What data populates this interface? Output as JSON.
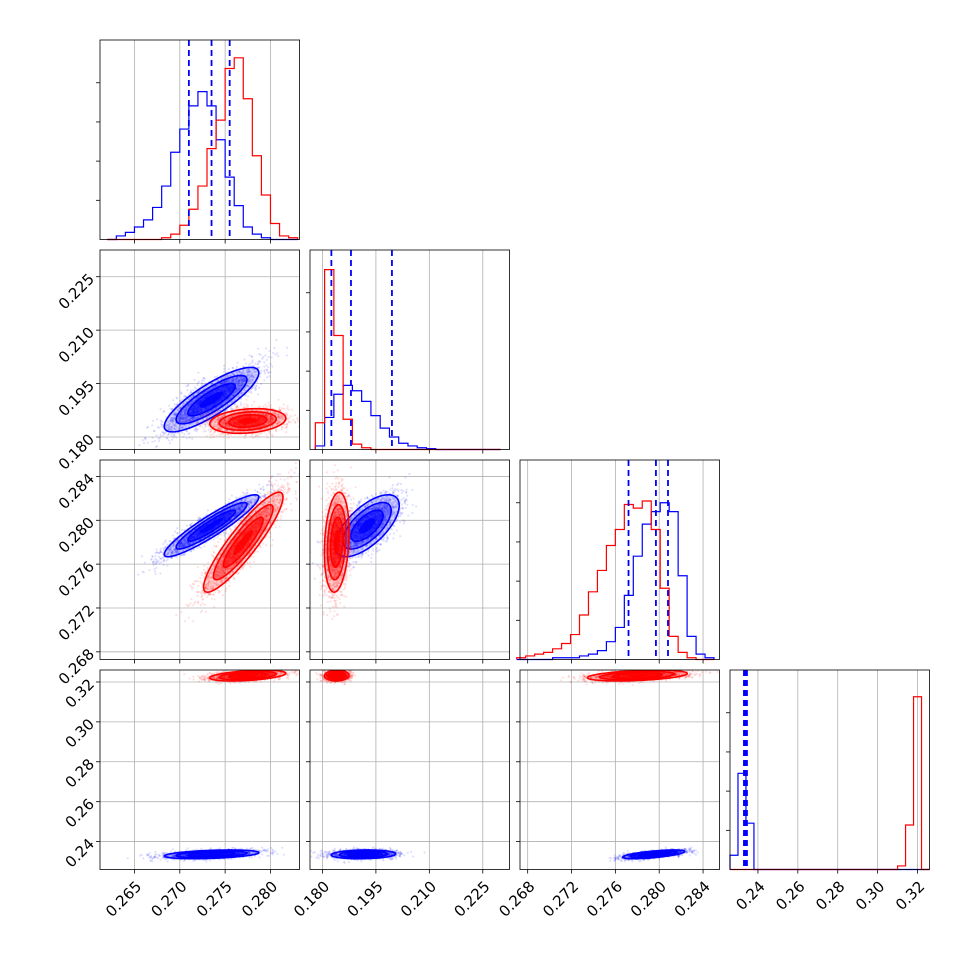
{
  "chart_data": {
    "type": "corner",
    "parameters": 4,
    "series": [
      {
        "color": "#0000ff"
      },
      {
        "color": "#ff0000"
      }
    ],
    "quantile_lines": {
      "color": "#0000ff",
      "series_index": 0
    },
    "grid": true,
    "axes": [
      {
        "range": [
          0.2612,
          0.2832
        ],
        "ticks": [
          "0.265",
          "0.270",
          "0.275",
          "0.280"
        ]
      },
      {
        "range": [
          0.1765,
          0.2325
        ],
        "ticks": [
          "0.180",
          "0.195",
          "0.210",
          "0.225"
        ]
      },
      {
        "range": [
          0.2673,
          0.2855
        ],
        "ticks": [
          "0.268",
          "0.272",
          "0.276",
          "0.280",
          "0.284"
        ]
      },
      {
        "range": [
          0.226,
          0.326
        ],
        "ticks": [
          "0.24",
          "0.26",
          "0.28",
          "0.30",
          "0.32"
        ]
      }
    ],
    "panels": [
      {
        "type": "hist",
        "param": 0,
        "bin_range": [
          0.262,
          0.283
        ],
        "ymax": 1.12,
        "series": [
          {
            "name": "",
            "values": [
              0,
              0.02,
              0.04,
              0.07,
              0.11,
              0.18,
              0.3,
              0.49,
              0.62,
              0.75,
              0.83,
              0.75,
              0.56,
              0.35,
              0.19,
              0.07,
              0.03,
              0.01,
              0,
              0,
              0
            ]
          },
          {
            "name": "",
            "values": [
              0,
              0,
              0,
              0,
              0,
              0,
              0.01,
              0.03,
              0.08,
              0.17,
              0.3,
              0.51,
              0.67,
              0.96,
              1.02,
              0.79,
              0.47,
              0.25,
              0.09,
              0.02,
              0.01
            ]
          }
        ],
        "quantiles": [
          0.271,
          0.2735,
          0.2755
        ]
      },
      {
        "type": "hist",
        "param": 1,
        "bin_range": [
          0.178,
          0.23
        ],
        "ymax": 1.12,
        "series": [
          {
            "name": "",
            "values": [
              0.02,
              0.18,
              0.31,
              0.36,
              0.33,
              0.27,
              0.19,
              0.12,
              0.07,
              0.035,
              0.02,
              0.01,
              0.005,
              0,
              0,
              0,
              0,
              0,
              0,
              0
            ]
          },
          {
            "name": "",
            "values": [
              0.15,
              1.01,
              0.64,
              0.17,
              0.03,
              0.01,
              0,
              0,
              0,
              0,
              0,
              0,
              0,
              0,
              0,
              0,
              0,
              0,
              0,
              0
            ]
          }
        ],
        "quantiles": [
          0.1825,
          0.188,
          0.1995
        ]
      },
      {
        "type": "hist",
        "param": 2,
        "bin_range": [
          0.267,
          0.285
        ],
        "ymax": 1.12,
        "series": [
          {
            "name": "",
            "values": [
              0,
              0,
              0,
              0,
              0.01,
              0.01,
              0.01,
              0.02,
              0.03,
              0.05,
              0.1,
              0.18,
              0.36,
              0.58,
              0.76,
              0.83,
              0.88,
              0.83,
              0.47,
              0.13,
              0.03,
              0.01
            ]
          },
          {
            "name": "",
            "values": [
              0.01,
              0.02,
              0.03,
              0.04,
              0.06,
              0.09,
              0.14,
              0.25,
              0.38,
              0.5,
              0.64,
              0.73,
              0.87,
              0.85,
              0.89,
              0.73,
              0.4,
              0.13,
              0.04,
              0.01,
              0,
              0
            ]
          }
        ],
        "quantiles": [
          0.2772,
          0.2797,
          0.2808
        ]
      },
      {
        "type": "hist",
        "param": 3,
        "bin_range": [
          0.226,
          0.326
        ],
        "ymax": 1.12,
        "series": [
          {
            "name": "",
            "values": [
              0.08,
              0.54,
              0.26,
              0,
              0,
              0,
              0,
              0,
              0,
              0,
              0,
              0,
              0,
              0,
              0,
              0,
              0,
              0,
              0,
              0,
              0,
              0,
              0,
              0,
              0
            ]
          },
          {
            "name": "",
            "values": [
              0,
              0,
              0,
              0,
              0,
              0,
              0,
              0,
              0,
              0,
              0,
              0,
              0,
              0,
              0,
              0,
              0,
              0,
              0,
              0,
              0,
              0.02,
              0.25,
              0.97,
              0
            ]
          }
        ],
        "quantiles": [
          0.233,
          0.2333,
          0.2337,
          0.2341,
          0.2345
        ]
      },
      {
        "type": "scatter2d",
        "x": 0,
        "y": 1,
        "clouds": [
          {
            "series_index": 0,
            "center": [
              0.2735,
              0.1905
            ],
            "cov": [
              [
                6.8e-06,
                9.8e-06
              ],
              [
                9.8e-06,
                2.05e-05
              ]
            ],
            "points": 2200
          },
          {
            "series_index": 1,
            "center": [
              0.2775,
              0.1845
            ],
            "cov": [
              [
                4.4e-06,
                8e-07
              ],
              [
                8e-07,
                3e-06
              ]
            ],
            "points": 1600
          }
        ]
      },
      {
        "type": "scatter2d",
        "x": 0,
        "y": 2,
        "clouds": [
          {
            "series_index": 0,
            "center": [
              0.2735,
              0.2795
            ],
            "cov": [
              [
                6.8e-06,
                3.4e-06
              ],
              [
                3.4e-06,
                2e-06
              ]
            ],
            "points": 2000
          },
          {
            "series_index": 1,
            "center": [
              0.277,
              0.278
            ],
            "cov": [
              [
                4.8e-06,
                4.5e-06
              ],
              [
                4.5e-06,
                5.2e-06
              ]
            ],
            "points": 2000
          }
        ]
      },
      {
        "type": "scatter2d",
        "x": 1,
        "y": 2,
        "clouds": [
          {
            "series_index": 0,
            "center": [
              0.1925,
              0.2795
            ],
            "cov": [
              [
                2.05e-05,
                4.2e-06
              ],
              [
                4.2e-06,
                2e-06
              ]
            ],
            "points": 2000
          },
          {
            "series_index": 1,
            "center": [
              0.184,
              0.278
            ],
            "cov": [
              [
                3e-06,
                8e-07
              ],
              [
                8e-07,
                5.2e-06
              ]
            ],
            "points": 2000
          }
        ]
      },
      {
        "type": "scatter2d",
        "x": 0,
        "y": 3,
        "clouds": [
          {
            "series_index": 0,
            "center": [
              0.2735,
              0.2336
            ],
            "cov": [
              [
                6.8e-06,
                1.1e-06
              ],
              [
                1.1e-06,
                1.2e-06
              ]
            ],
            "points": 1600
          },
          {
            "series_index": 1,
            "center": [
              0.2775,
              0.3232
            ],
            "cov": [
              [
                4.4e-06,
                1.2e-06
              ],
              [
                1.2e-06,
                1.8e-06
              ]
            ],
            "points": 1600
          }
        ]
      },
      {
        "type": "scatter2d",
        "x": 1,
        "y": 3,
        "clouds": [
          {
            "series_index": 0,
            "center": [
              0.1915,
              0.2336
            ],
            "cov": [
              [
                2.05e-05,
                6e-07
              ],
              [
                6e-07,
                1.2e-06
              ]
            ],
            "points": 1600
          },
          {
            "series_index": 1,
            "center": [
              0.184,
              0.3232
            ],
            "cov": [
              [
                3e-06,
                1e-07
              ],
              [
                1e-07,
                1.8e-06
              ]
            ],
            "points": 1400
          }
        ]
      },
      {
        "type": "scatter2d",
        "x": 2,
        "y": 3,
        "clouds": [
          {
            "series_index": 0,
            "center": [
              0.2795,
              0.2336
            ],
            "cov": [
              [
                2e-06,
                1e-06
              ],
              [
                1e-06,
                1.2e-06
              ]
            ],
            "points": 1600
          },
          {
            "series_index": 1,
            "center": [
              0.278,
              0.3232
            ],
            "cov": [
              [
                5.2e-06,
                1.2e-06
              ],
              [
                1.2e-06,
                1.8e-06
              ]
            ],
            "points": 1600
          }
        ]
      }
    ]
  }
}
